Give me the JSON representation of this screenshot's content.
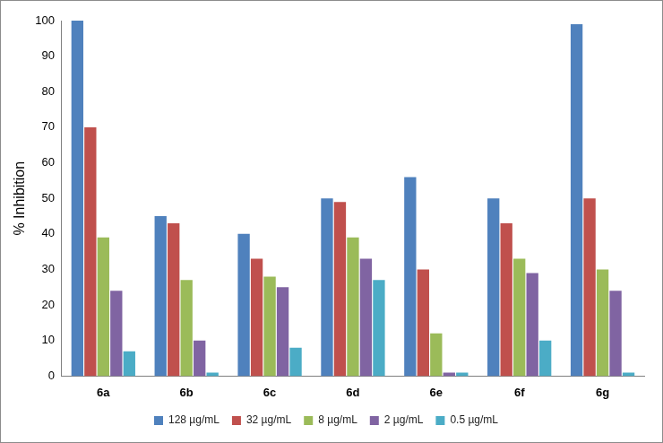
{
  "chart_data": {
    "type": "bar",
    "y_label": "% Inhibition",
    "categories": [
      "6a",
      "6b",
      "6c",
      "6d",
      "6e",
      "6f",
      "6g"
    ],
    "series": [
      {
        "name": "128 µg/mL",
        "color": "#4f81bd",
        "values": [
          100,
          45,
          40,
          50,
          56,
          50,
          99
        ]
      },
      {
        "name": "32 µg/mL",
        "color": "#c0504d",
        "values": [
          70,
          43,
          33,
          49,
          30,
          43,
          50
        ]
      },
      {
        "name": "8 µg/mL",
        "color": "#9bbb59",
        "values": [
          39,
          27,
          28,
          39,
          12,
          33,
          30
        ]
      },
      {
        "name": "2 µg/mL",
        "color": "#8064a2",
        "values": [
          24,
          10,
          25,
          33,
          1,
          29,
          24
        ]
      },
      {
        "name": "0.5 µg/mL",
        "color": "#4bacc6",
        "values": [
          7,
          1,
          8,
          27,
          1,
          10,
          1
        ]
      }
    ],
    "ylim": [
      0,
      100
    ],
    "yticks": [
      0,
      10,
      20,
      30,
      40,
      50,
      60,
      70,
      80,
      90,
      100
    ],
    "grid": false,
    "legend": "bottom"
  }
}
